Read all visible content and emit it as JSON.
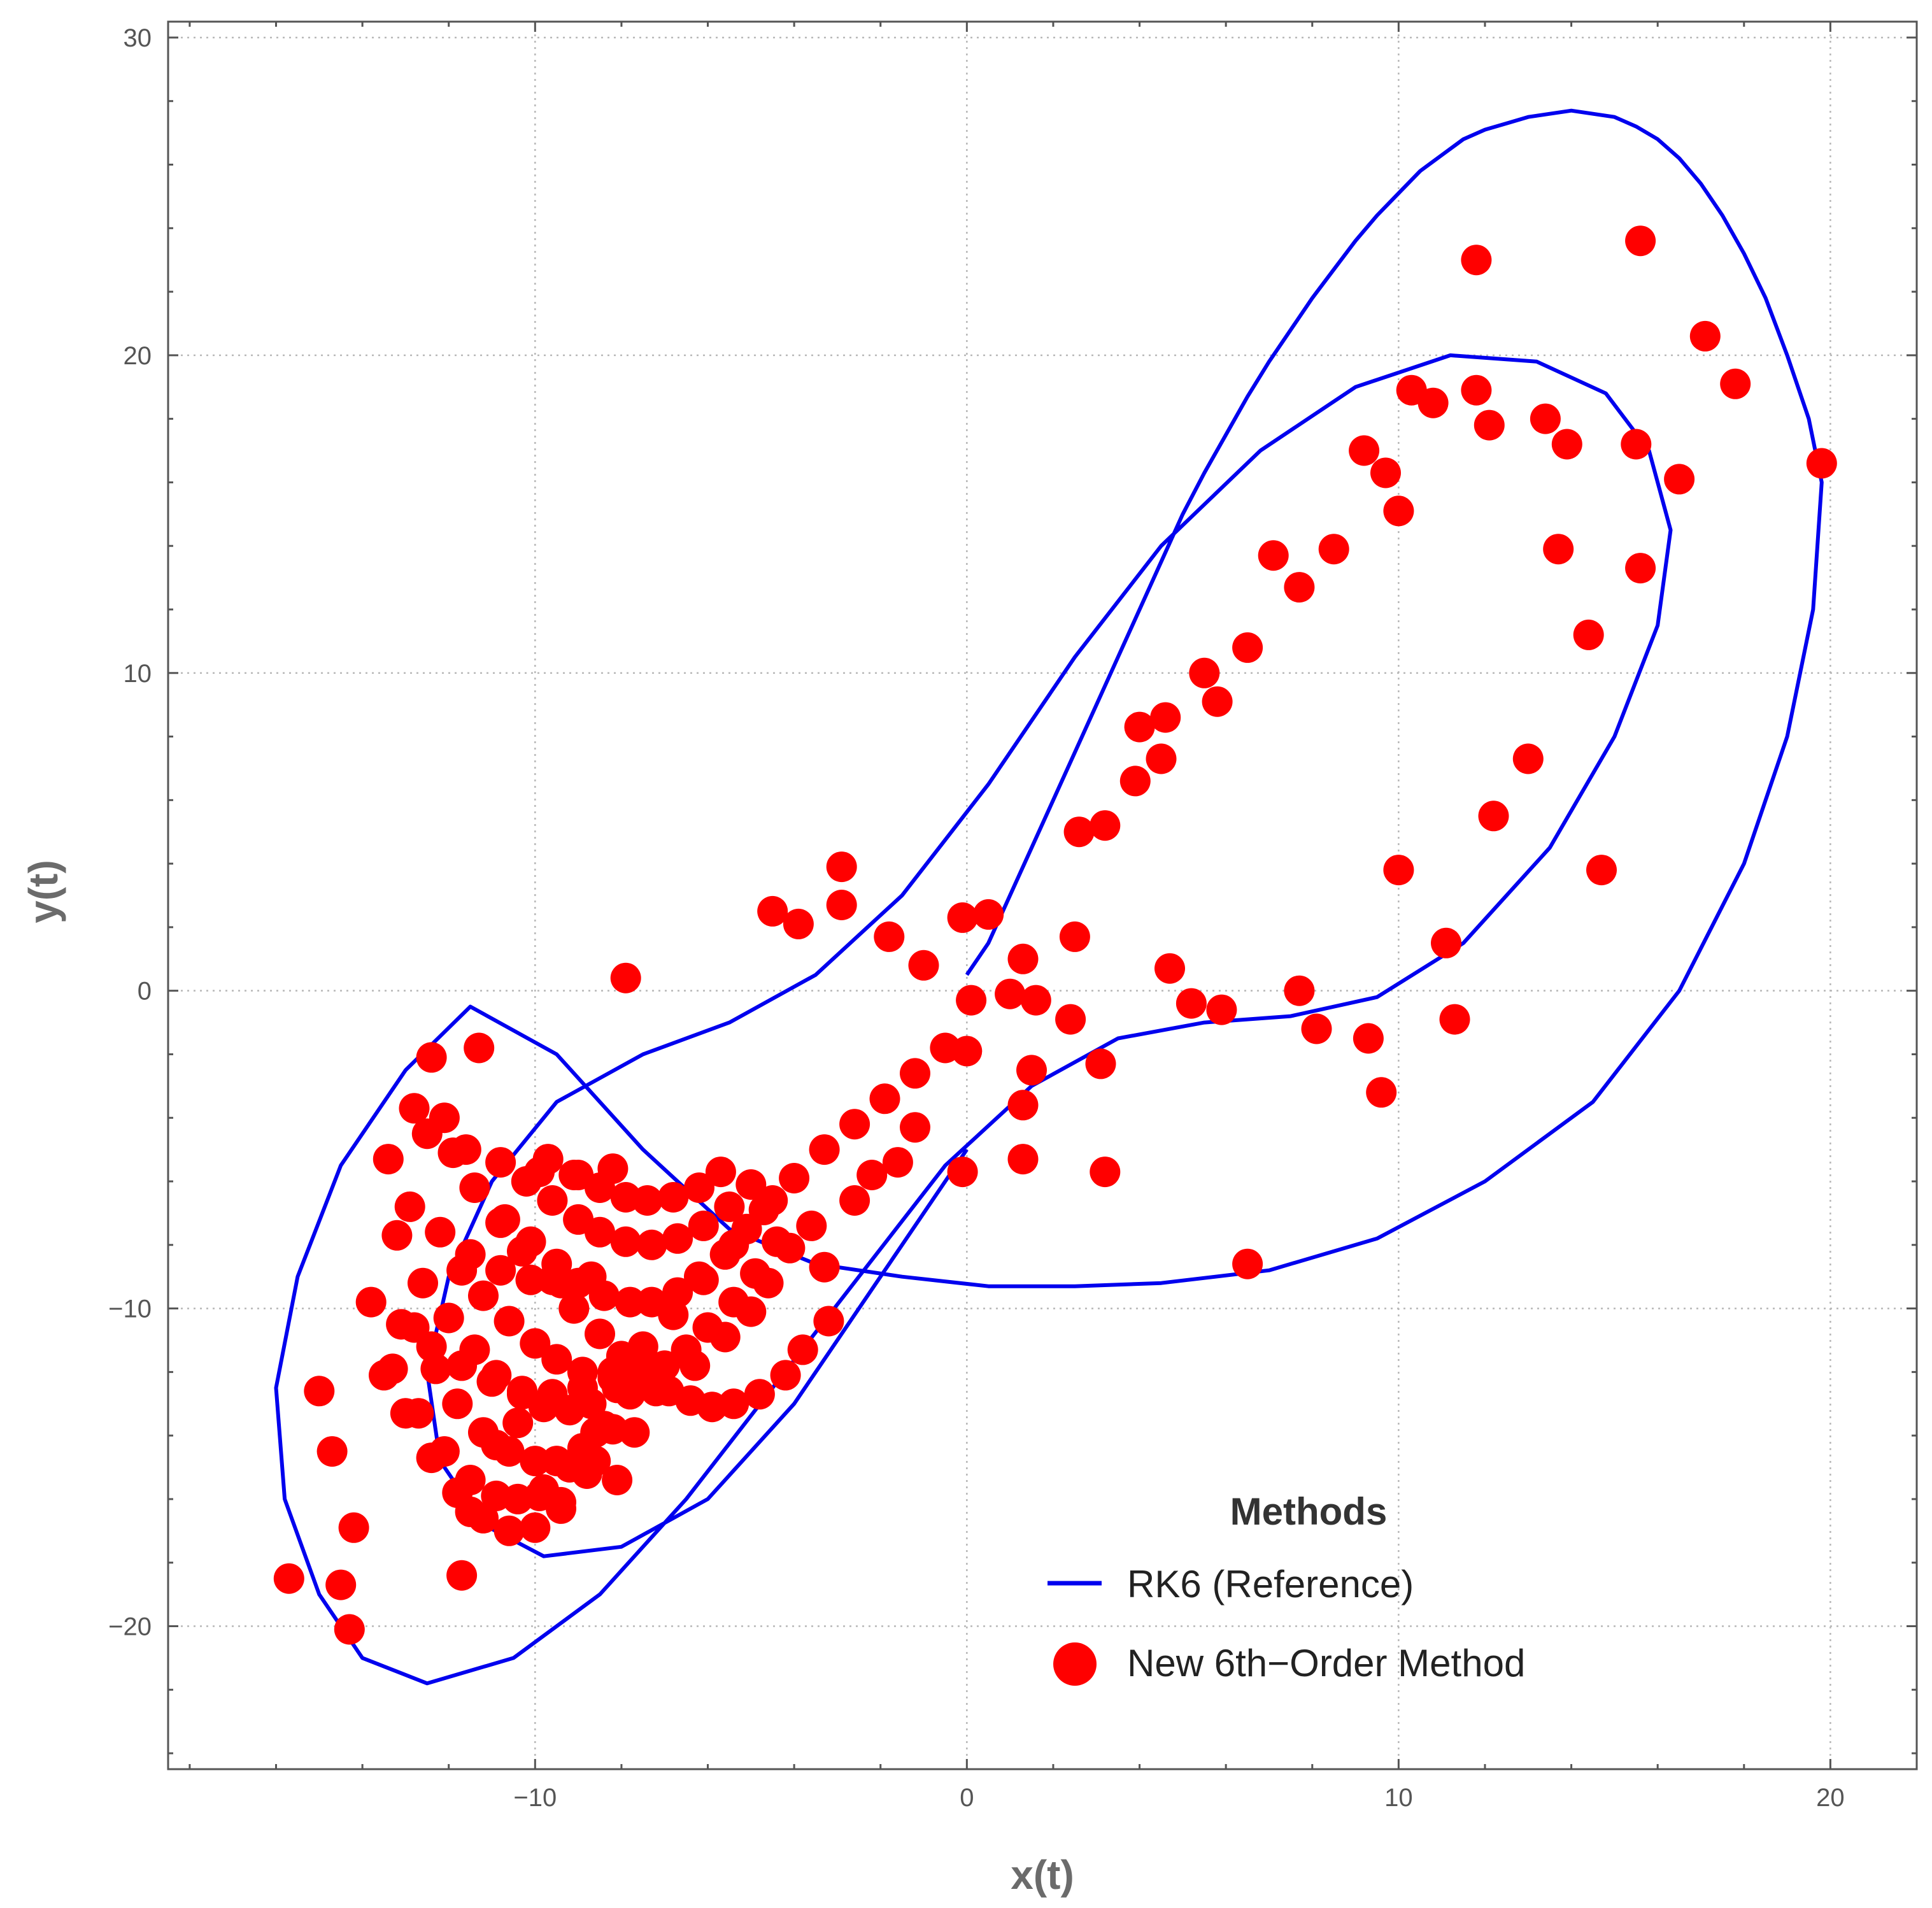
{
  "chart_data": {
    "type": "line",
    "title": "",
    "xlabel": "x(t)",
    "ylabel": "y(t)",
    "xlim": [
      -18.5,
      22
    ],
    "ylim": [
      -24.5,
      30.5
    ],
    "xticks": [
      -10,
      0,
      10,
      20
    ],
    "yticks": [
      -20,
      -10,
      0,
      10,
      20,
      30
    ],
    "xtick_labels": [
      "−10",
      "0",
      "10",
      "20"
    ],
    "ytick_labels": [
      "−20",
      "−10",
      "0",
      "10",
      "20",
      "30"
    ],
    "grid": true,
    "legend": {
      "title": "Methods",
      "placement": "bottom-right",
      "entries": [
        {
          "label": "RK6 (Reference)",
          "marker": "line",
          "color": "#0000ee"
        },
        {
          "label": "New 6th−Order Method",
          "marker": "dot",
          "color": "#ff0000"
        }
      ]
    },
    "series": [
      {
        "name": "RK6 (Reference)",
        "style": "line",
        "color": "#0000ee",
        "x": [
          0.0,
          0.5,
          1.0,
          1.5,
          2.0,
          2.5,
          3.0,
          3.5,
          4.0,
          4.5,
          5.0,
          5.5,
          6.0,
          6.5,
          7.0,
          7.5,
          8.0,
          8.5,
          9.0,
          9.5,
          10.0,
          10.5,
          11.0,
          11.5,
          12.0,
          12.5,
          13.0,
          13.5,
          14.0,
          14.5,
          15.0,
          15.5,
          16.0,
          16.5,
          17.0,
          17.5,
          18.0,
          18.5,
          19.0,
          19.5,
          19.8,
          19.6,
          19.0,
          18.0,
          16.5,
          14.5,
          12.0,
          9.5,
          7.0,
          4.5,
          2.5,
          0.5,
          -1.5,
          -3.5,
          -5.5,
          -7.5,
          -9.5,
          -11.5,
          -13.0,
          -14.5,
          -15.5,
          -16.0,
          -15.8,
          -15.0,
          -14.0,
          -12.5,
          -10.5,
          -8.5,
          -6.5,
          -4.5,
          -2.5,
          -0.5,
          1.5,
          3.5,
          5.5,
          7.5,
          9.5,
          11.5,
          13.5,
          15.0,
          16.0,
          16.3,
          15.8,
          14.8,
          13.2,
          11.2,
          9.0,
          6.8,
          4.5,
          2.5,
          0.5,
          -1.5,
          -3.5,
          -5.5,
          -7.5,
          -9.5,
          -11.0,
          -12.0,
          -12.5,
          -12.2,
          -11.2,
          -9.8,
          -8.0,
          -6.0,
          -4.0,
          -2.0,
          0.0
        ],
        "y": [
          0.5,
          1.5,
          3.0,
          4.5,
          6.0,
          7.5,
          9.0,
          10.5,
          12.0,
          13.5,
          15.0,
          16.3,
          17.5,
          18.7,
          19.8,
          20.8,
          21.8,
          22.7,
          23.6,
          24.4,
          25.1,
          25.8,
          26.3,
          26.8,
          27.1,
          27.3,
          27.5,
          27.6,
          27.7,
          27.6,
          27.5,
          27.2,
          26.8,
          26.2,
          25.4,
          24.4,
          23.2,
          21.8,
          20.0,
          18.0,
          16.0,
          12.0,
          8.0,
          4.0,
          0.0,
          -3.5,
          -6.0,
          -7.8,
          -8.8,
          -9.2,
          -9.3,
          -9.3,
          -9.0,
          -8.6,
          -7.5,
          -5.0,
          -2.0,
          -0.5,
          -2.5,
          -5.5,
          -9.0,
          -12.5,
          -16.0,
          -19.0,
          -21.0,
          -21.8,
          -21.0,
          -19.0,
          -16.0,
          -12.5,
          -9.0,
          -5.5,
          -3.0,
          -1.5,
          -1.0,
          -0.8,
          -0.2,
          1.5,
          4.5,
          8.0,
          11.5,
          14.5,
          17.0,
          18.8,
          19.8,
          20.0,
          19.0,
          17.0,
          14.0,
          10.5,
          6.5,
          3.0,
          0.5,
          -1.0,
          -2.0,
          -3.5,
          -6.0,
          -9.0,
          -12.0,
          -14.8,
          -16.8,
          -17.8,
          -17.5,
          -16.0,
          -13.0,
          -9.0,
          -5.0
        ]
      },
      {
        "name": "New 6th−Order Method",
        "style": "scatter",
        "color": "#ff0000",
        "x": [
          15.6,
          11.8,
          17.1,
          17.8,
          19.8,
          10.3,
          10.8,
          11.8,
          12.1,
          13.4,
          13.9,
          15.5,
          16.5,
          9.2,
          9.7,
          10.0,
          13.7,
          15.6,
          7.1,
          7.7,
          8.5,
          14.4,
          6.5,
          5.5,
          5.8,
          4.0,
          4.6,
          4.5,
          3.9,
          3.2,
          2.6,
          13.0,
          12.2,
          14.7,
          10.0,
          11.1,
          4.7,
          5.2,
          5.9,
          7.7,
          8.1,
          9.3,
          11.3,
          2.5,
          9.6,
          -2.9,
          -2.9,
          -4.5,
          -3.9,
          -1.8,
          -7.9,
          -1.0,
          -0.1,
          0.5,
          1.3,
          1.6,
          1.0,
          0.0,
          2.4,
          3.1,
          1.5,
          1.3,
          1.3,
          -0.1,
          0.1,
          3.2,
          6.5,
          -3.3,
          -12.4,
          -11.3,
          -12.8,
          -13.4,
          -13.2,
          -13.5,
          -15.0,
          -14.7,
          -14.2,
          -15.7,
          -14.5,
          -14.3,
          -11.7,
          -11.5,
          -9.9,
          -9.4,
          -10.9,
          -10.4,
          -8.1,
          -8.6,
          -7.7,
          -7.2,
          -6.3,
          -5.6,
          -5.0,
          -4.6,
          -4.1,
          -3.6,
          -2.6,
          -2.2,
          -1.6,
          -1.2,
          -12.1,
          -11.9,
          -11.4,
          -10.8,
          -10.3,
          -9.6,
          -9.1,
          -8.5,
          -8.0,
          -7.4,
          -6.9,
          -6.4,
          -5.9,
          -5.4,
          -4.8,
          -4.2,
          -3.8,
          -3.2,
          -11.7,
          -11.2,
          -10.6,
          -10.0,
          -9.5,
          -8.9,
          -8.2,
          -7.6,
          -7.0,
          -6.5,
          -6.0,
          -5.4,
          -4.9,
          -4.4,
          -10.7,
          -10.1,
          -9.5,
          -9.0,
          -8.4,
          -7.8,
          -7.3,
          -6.7,
          -6.2,
          -5.6,
          -5.1,
          -4.5,
          -10.2,
          -9.6,
          -9.0,
          -8.5,
          -7.9,
          -7.3,
          -6.7,
          -6.1,
          -5.5,
          -5.0,
          -9.7,
          -9.1,
          -8.5,
          -7.9,
          -7.4,
          -6.8,
          -6.2,
          -5.7,
          -12.6,
          -12.0,
          -11.4,
          -10.9,
          -10.3,
          -9.8,
          -9.2,
          -8.7,
          -8.1,
          -7.6,
          -12.8,
          -12.3,
          -11.8,
          -11.2,
          -10.6,
          -10.0,
          -9.5,
          -8.9,
          -8.4,
          -7.8,
          -13.3,
          -12.7,
          -12.1,
          -11.5,
          -10.9,
          -10.4,
          -9.8,
          -9.2,
          -8.6,
          -8.0,
          -13.0,
          -12.4,
          -11.8,
          -11.2,
          -10.6,
          -10.0,
          -9.4,
          -8.8,
          -8.2,
          -12.9,
          -12.2,
          -11.5,
          -10.8,
          -10.1,
          -9.4,
          -8.7,
          -12.5,
          -11.6,
          -10.8,
          -9.9,
          -9.0,
          -8.2,
          -13.8,
          -13.1,
          -12.4,
          -11.7,
          -11.0,
          -10.3,
          -9.6,
          -8.9,
          -8.2,
          -7.5,
          -6.8,
          -6.1,
          -5.4,
          -4.7,
          -4.0,
          -3.3,
          -2.6,
          -1.9,
          -1.2,
          -0.5
        ],
        "y": [
          23.6,
          23.0,
          20.6,
          19.1,
          16.6,
          18.9,
          18.5,
          18.9,
          17.8,
          18.0,
          17.2,
          17.2,
          16.1,
          17.0,
          16.3,
          15.1,
          13.9,
          13.3,
          13.7,
          12.7,
          13.9,
          11.2,
          10.8,
          10.0,
          9.1,
          8.3,
          8.6,
          7.3,
          6.6,
          5.2,
          5.0,
          7.3,
          5.5,
          3.8,
          3.8,
          1.5,
          0.7,
          -0.4,
          -0.6,
          0.0,
          -1.2,
          -1.5,
          -0.9,
          1.7,
          -3.2,
          3.9,
          2.7,
          2.5,
          2.1,
          1.7,
          0.4,
          0.8,
          2.3,
          2.4,
          1.0,
          -0.3,
          -0.1,
          -1.9,
          -0.9,
          -2.3,
          -2.5,
          -3.6,
          -5.3,
          -5.7,
          -0.3,
          -5.7,
          -8.6,
          -8.7,
          -2.1,
          -1.8,
          -3.7,
          -5.3,
          -7.7,
          -12.1,
          -12.6,
          -14.5,
          -16.9,
          -18.5,
          -18.7,
          -20.1,
          -18.4,
          -16.4,
          -15.9,
          -16.1,
          -14.3,
          -13.6,
          -15.4,
          -14.8,
          -13.9,
          -12.6,
          -11.8,
          -10.9,
          -10.1,
          -9.2,
          -8.1,
          -7.4,
          -6.6,
          -5.8,
          -5.4,
          -4.3,
          -4.0,
          -5.1,
          -6.2,
          -7.3,
          -8.2,
          -9.1,
          -10.0,
          -10.8,
          -11.5,
          -12.1,
          -12.6,
          -12.9,
          -13.1,
          -13.0,
          -12.7,
          -12.1,
          -11.3,
          -10.4,
          -8.8,
          -9.6,
          -10.4,
          -11.1,
          -11.6,
          -12.0,
          -12.2,
          -12.1,
          -11.8,
          -11.3,
          -10.6,
          -9.8,
          -8.9,
          -7.9,
          -7.2,
          -7.9,
          -8.6,
          -9.2,
          -9.6,
          -9.8,
          -9.8,
          -9.5,
          -9.0,
          -8.3,
          -7.5,
          -6.6,
          -6.0,
          -6.6,
          -7.2,
          -7.6,
          -7.9,
          -8.0,
          -7.8,
          -7.4,
          -6.8,
          -6.1,
          -5.3,
          -5.8,
          -6.2,
          -6.5,
          -6.6,
          -6.5,
          -6.2,
          -5.7,
          -9.2,
          -10.3,
          -11.3,
          -12.1,
          -12.7,
          -13.1,
          -13.2,
          -13.0,
          -12.5,
          -11.8,
          -10.6,
          -11.9,
          -13.0,
          -13.9,
          -14.5,
          -14.8,
          -14.8,
          -14.4,
          -13.7,
          -12.7,
          -11.9,
          -13.3,
          -14.5,
          -15.4,
          -15.9,
          -16.0,
          -15.7,
          -15.0,
          -13.9,
          -12.5,
          -13.3,
          -14.7,
          -15.8,
          -16.6,
          -17.0,
          -16.9,
          -16.3,
          -15.2,
          -13.8,
          -6.8,
          -7.6,
          -8.3,
          -8.8,
          -9.1,
          -9.2,
          -9.0,
          -4.5,
          -5.0,
          -5.4,
          -5.7,
          -5.8,
          -5.6,
          -9.8,
          -10.5,
          -11.2,
          -11.8,
          -12.3,
          -12.6,
          -12.7,
          -12.5,
          -12.0,
          -11.2,
          -10.2,
          -9.1,
          -8.0,
          -6.9,
          -5.9,
          -5.0,
          -4.2,
          -3.4,
          -2.6,
          -1.8
        ]
      }
    ]
  }
}
